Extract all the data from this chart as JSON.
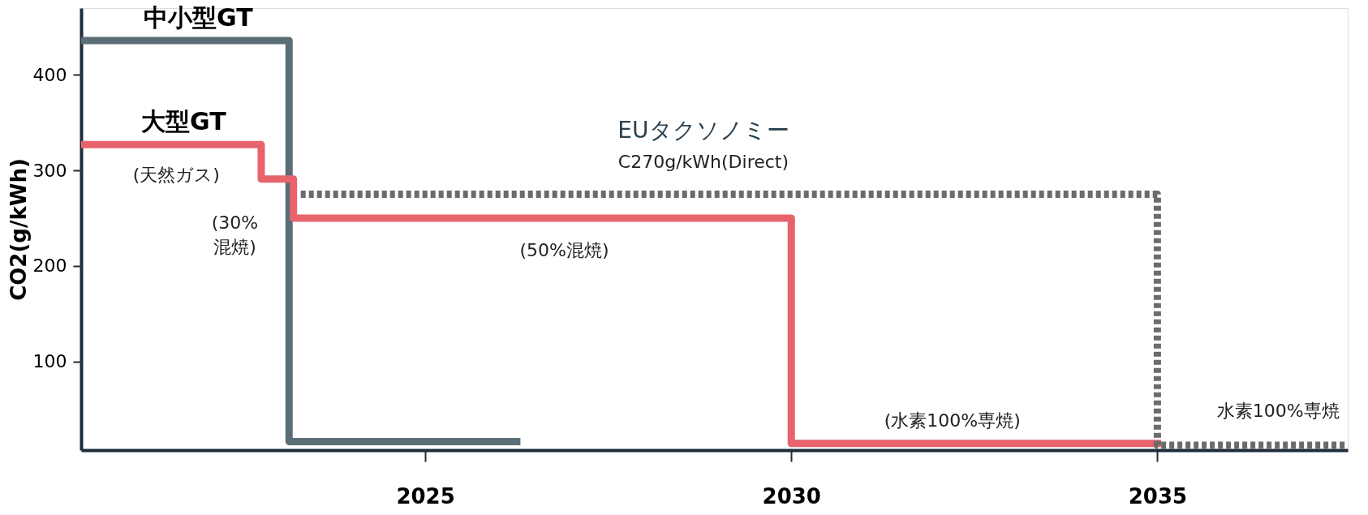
{
  "chart_data": {
    "type": "step",
    "ylabel": "CO2(g/kWh)",
    "xlim": [
      2020.3,
      2037.6
    ],
    "xticks": [
      2025,
      2030,
      2035
    ],
    "ylim": [
      7,
      470
    ],
    "yticks": [
      100,
      200,
      300,
      400
    ],
    "grid": false,
    "legend": false,
    "line_style": "solid",
    "series": [
      {
        "name": "中小型GT",
        "color": "#5b6e77",
        "x": [
          2020.3,
          2023.14,
          2026.3
        ],
        "values": [
          436,
          16,
          16
        ]
      },
      {
        "name": "大型GT",
        "color": "#e8636b",
        "x": [
          2020.3,
          2022.76,
          2023.2,
          2030,
          2035.05
        ],
        "values": [
          327,
          291,
          250,
          14,
          14
        ]
      },
      {
        "name": "EUタクソノミー",
        "color": "#6b6b6b",
        "line_style": "dashed",
        "x": [
          2023.3,
          2035,
          2037.6
        ],
        "values": [
          275,
          12,
          12
        ]
      }
    ],
    "annotations": [
      "(天然ガス)",
      "(30%\n混焼)",
      "(50%混焼)",
      "C270g/kWh(Direct)",
      "(水素100%専焼)",
      "水素100%専焼"
    ]
  }
}
